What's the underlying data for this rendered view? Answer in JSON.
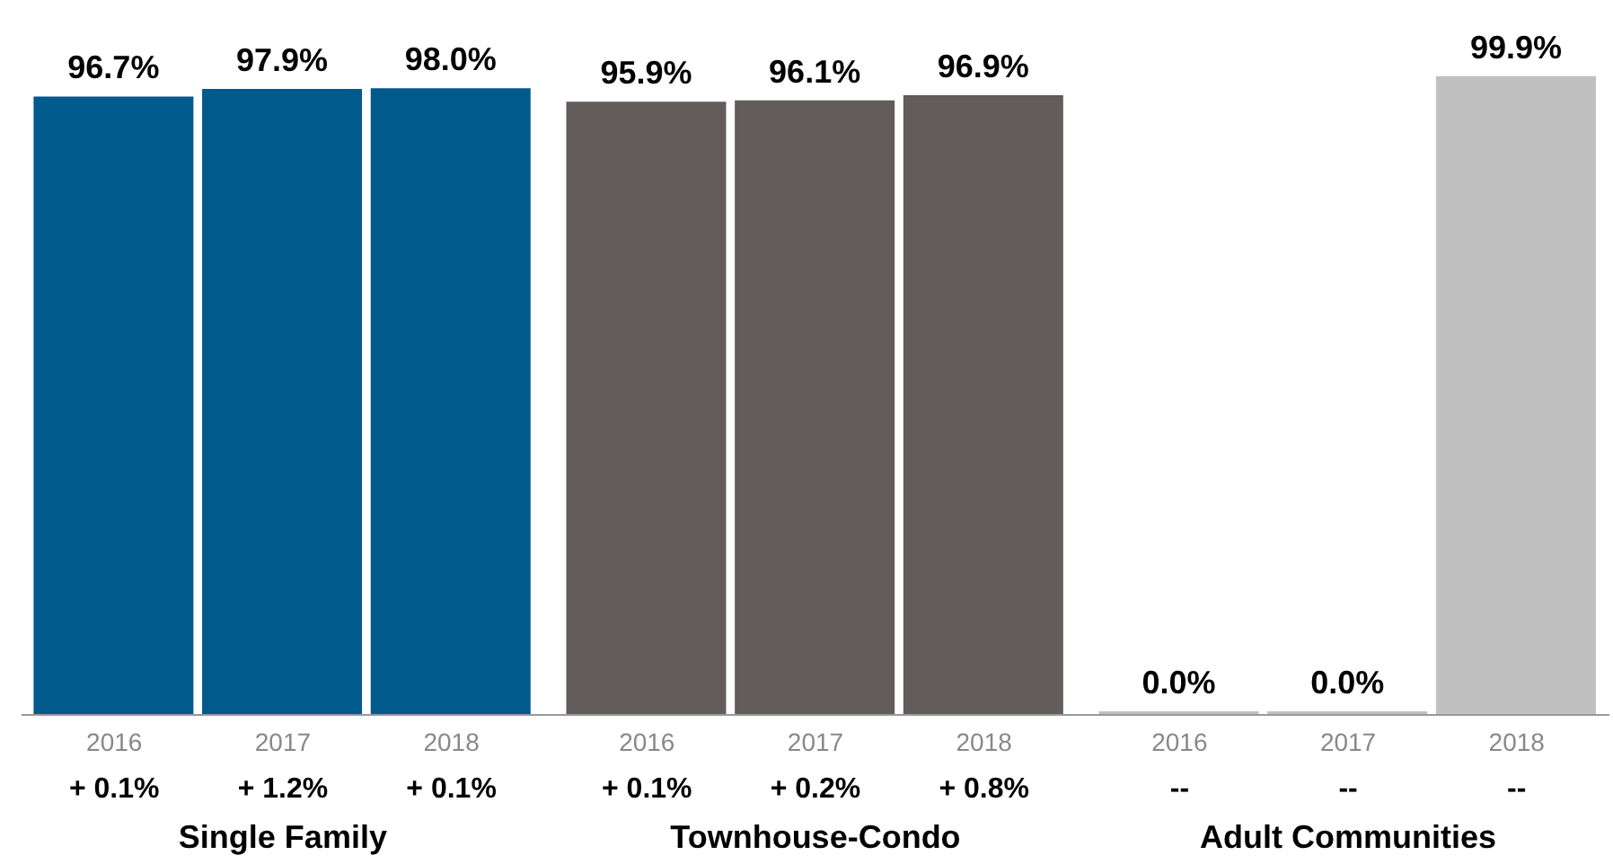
{
  "chart_data": {
    "type": "bar",
    "categories": [
      "2016",
      "2017",
      "2018",
      "2016",
      "2017",
      "2018",
      "2016",
      "2017",
      "2018"
    ],
    "values": [
      96.7,
      97.9,
      98.0,
      95.9,
      96.1,
      96.9,
      0.0,
      0.0,
      99.9
    ],
    "value_labels": [
      "96.7%",
      "97.9%",
      "98.0%",
      "95.9%",
      "96.1%",
      "96.9%",
      "0.0%",
      "0.0%",
      "99.9%"
    ],
    "colors": [
      "#005a8c",
      "#005a8c",
      "#005a8c",
      "#625c5b",
      "#625c5b",
      "#625c5b",
      "#c0c0c0",
      "#c0c0c0",
      "#c0c0c0"
    ],
    "ylim": [
      0,
      100
    ],
    "tick_labels": "x",
    "annotations": [
      "+ 0.1%",
      "+ 1.2%",
      "+ 0.1%",
      "+ 0.1%",
      "+ 0.2%",
      "+ 0.8%",
      "--",
      "--",
      "--",
      "Single Family",
      "Townhouse-Condo",
      "Adult Communities"
    ]
  }
}
